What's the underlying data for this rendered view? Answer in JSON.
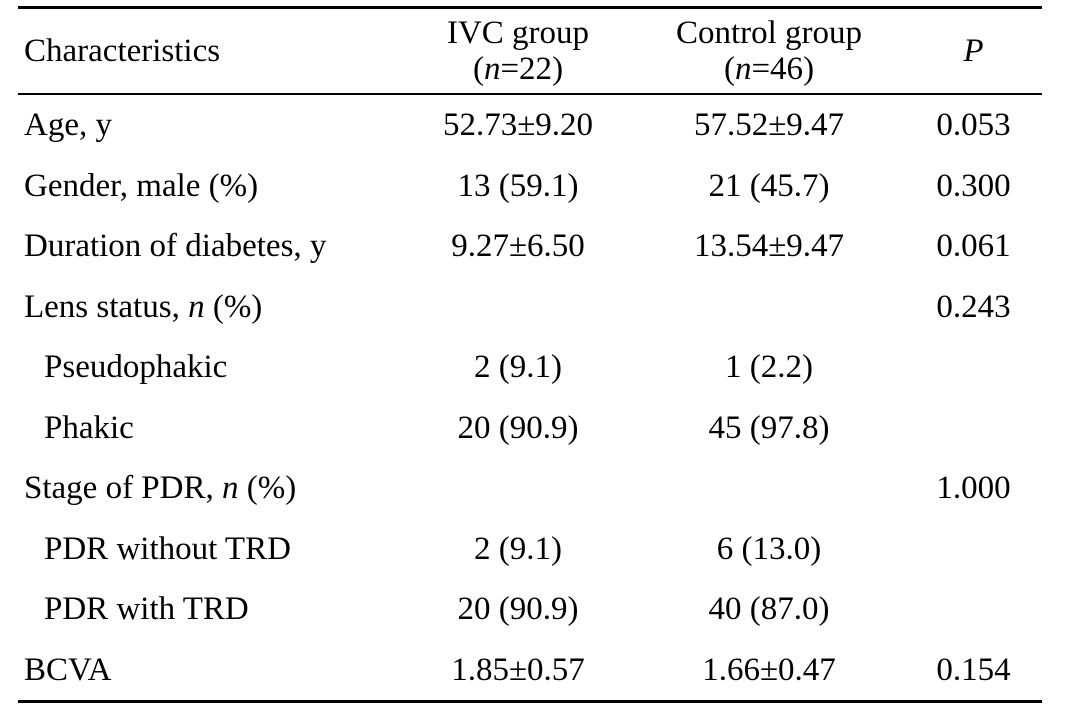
{
  "header": {
    "characteristics": "Characteristics",
    "ivc_group": "IVC group",
    "ivc_n_label": "n",
    "ivc_n_value": "=22",
    "control_group": "Control group",
    "control_n_label": "n",
    "control_n_value": "=46",
    "p": "P"
  },
  "rows": [
    {
      "label": "Age, y",
      "ivc": "52.73±9.20",
      "control": "57.52±9.47",
      "p": "0.053"
    },
    {
      "label": "Gender, male (%)",
      "ivc": "13 (59.1)",
      "control": "21 (45.7)",
      "p": "0.300"
    },
    {
      "label": "Duration of diabetes, y",
      "ivc": "9.27±6.50",
      "control": "13.54±9.47",
      "p": "0.061"
    },
    {
      "label_pre": "Lens status, ",
      "label_it": "n",
      "label_post": " (%)",
      "ivc": "",
      "control": "",
      "p": "0.243"
    },
    {
      "label": "Pseudophakic",
      "ivc": "2 (9.1)",
      "control": "1 (2.2)",
      "p": ""
    },
    {
      "label": "Phakic",
      "ivc": "20 (90.9)",
      "control": "45 (97.8)",
      "p": ""
    },
    {
      "label_pre": "Stage of PDR, ",
      "label_it": "n",
      "label_post": " (%)",
      "ivc": "",
      "control": "",
      "p": "1.000"
    },
    {
      "label": "PDR without TRD",
      "ivc": "2 (9.1)",
      "control": "6 (13.0)",
      "p": ""
    },
    {
      "label": "PDR with TRD",
      "ivc": "20 (90.9)",
      "control": "40 (87.0)",
      "p": ""
    },
    {
      "label": "BCVA",
      "ivc": "1.85±0.57",
      "control": "1.66±0.47",
      "p": "0.154"
    }
  ]
}
